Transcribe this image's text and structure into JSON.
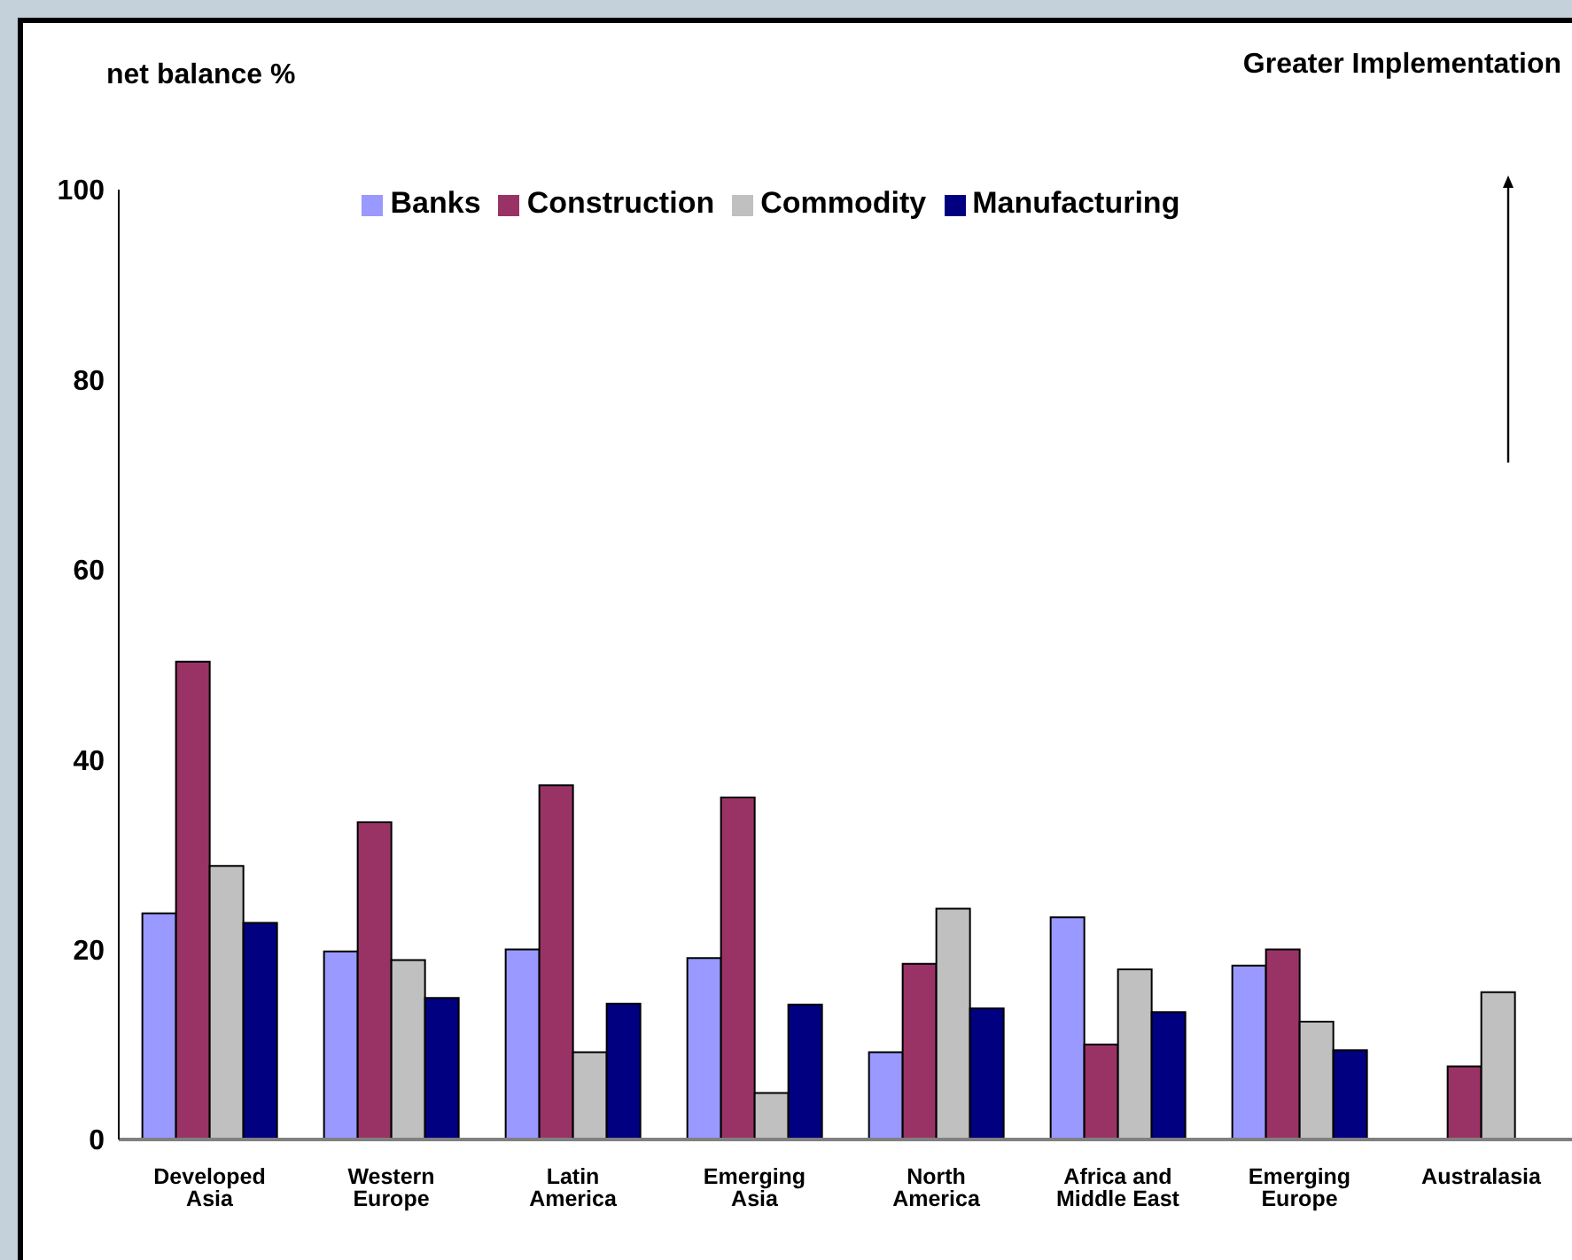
{
  "chart_data": {
    "type": "bar",
    "ylabel": "net balance %",
    "annotations": [
      "Greater Implementation"
    ],
    "categories": [
      "Developed Asia",
      "Western Europe",
      "Latin America",
      "Emerging Asia",
      "North America",
      "Africa and Middle East",
      "Emerging Europe",
      "Australasia"
    ],
    "series": [
      {
        "name": "Banks",
        "color": "#9999ff",
        "values": [
          23.8,
          19.8,
          20.0,
          19.1,
          9.2,
          23.4,
          18.3,
          null
        ]
      },
      {
        "name": "Construction",
        "color": "#993366",
        "values": [
          50.3,
          33.4,
          37.3,
          36.0,
          18.5,
          10.0,
          20.0,
          7.7
        ]
      },
      {
        "name": "Commodity",
        "color": "#c0c0c0",
        "values": [
          28.8,
          18.9,
          9.2,
          4.9,
          24.3,
          17.9,
          12.4,
          15.5
        ]
      },
      {
        "name": "Manufacturing",
        "color": "#000080",
        "values": [
          22.8,
          14.9,
          14.3,
          14.2,
          13.8,
          13.4,
          9.4,
          null
        ]
      }
    ],
    "ylim": [
      0,
      100
    ],
    "yticks": [
      0,
      20,
      40,
      60,
      80,
      100
    ],
    "grid": false,
    "legend": "top"
  }
}
